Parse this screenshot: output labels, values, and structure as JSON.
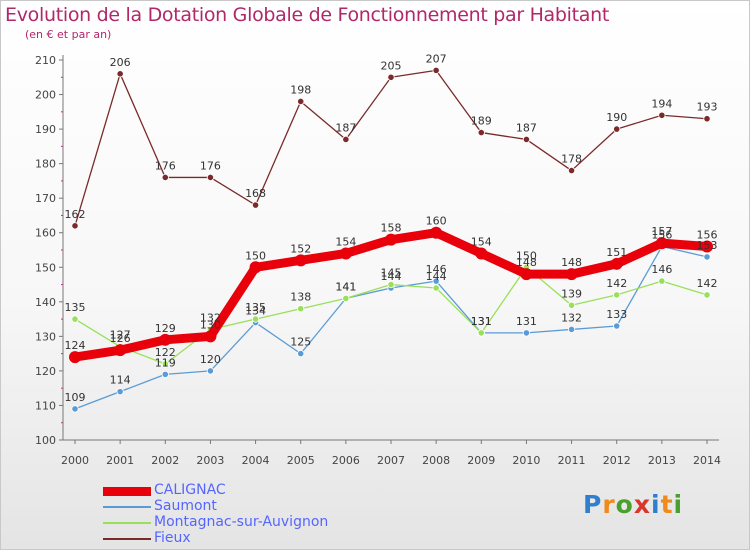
{
  "header": {
    "title": "Evolution de la Dotation Globale de Fonctionnement par Habitant",
    "subtitle": "(en € et par an)"
  },
  "logo": {
    "text": "Proxiti",
    "colors": [
      "#2f7fcf",
      "#f08a1c",
      "#4aa02c",
      "#d9352b",
      "#2f7fcf",
      "#f08a1c",
      "#4aa02c"
    ]
  },
  "chart_data": {
    "type": "line",
    "x": [
      "2000",
      "2001",
      "2002",
      "2003",
      "2004",
      "2005",
      "2006",
      "2007",
      "2008",
      "2009",
      "2010",
      "2011",
      "2012",
      "2013",
      "2014"
    ],
    "ylim": [
      100,
      210
    ],
    "yticks": [
      100,
      110,
      120,
      130,
      140,
      150,
      160,
      170,
      180,
      190,
      200,
      210
    ],
    "grid": false,
    "legend_placement": "bottom-left",
    "series": [
      {
        "name": "CALIGNAC",
        "color": "#e8000b",
        "values": [
          124,
          126,
          129,
          130,
          150,
          152,
          154,
          158,
          160,
          154,
          148,
          148,
          151,
          157,
          156
        ]
      },
      {
        "name": "Saumont",
        "color": "#5b9bd5",
        "values": [
          109,
          114,
          119,
          120,
          134,
          125,
          141,
          144,
          146,
          131,
          131,
          132,
          133,
          156,
          153
        ]
      },
      {
        "name": "Montagnac-sur-Auvignon",
        "color": "#99e05a",
        "values": [
          135,
          127,
          122,
          132,
          135,
          138,
          141,
          145,
          144,
          131,
          150,
          139,
          142,
          146,
          142
        ]
      },
      {
        "name": "Fieux",
        "color": "#7a2a2a",
        "values": [
          162,
          206,
          176,
          176,
          168,
          198,
          187,
          205,
          207,
          189,
          187,
          178,
          190,
          194,
          193
        ]
      }
    ]
  }
}
